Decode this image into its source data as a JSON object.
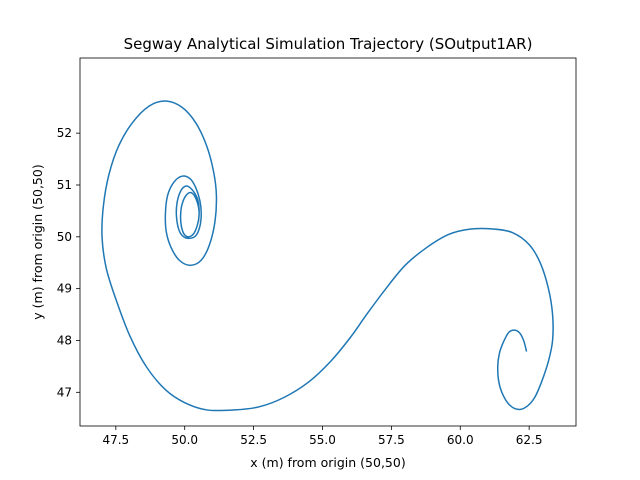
{
  "chart_data": {
    "type": "line",
    "title": "Segway Analytical Simulation Trajectory (SOutput1AR)",
    "xlabel": "x (m) from origin (50,50)",
    "ylabel": "y (m) from origin (50,50)",
    "xlim": [
      46.2,
      64.2
    ],
    "ylim": [
      46.35,
      53.45
    ],
    "xticks": [
      47.5,
      50.0,
      52.5,
      55.0,
      57.5,
      60.0,
      62.5
    ],
    "xtick_labels": [
      "47.5",
      "50.0",
      "52.5",
      "55.0",
      "57.5",
      "60.0",
      "62.5"
    ],
    "yticks": [
      47,
      48,
      49,
      50,
      51,
      52
    ],
    "ytick_labels": [
      "47",
      "48",
      "49",
      "50",
      "51",
      "52"
    ],
    "grid": false,
    "legend": "none",
    "series": [
      {
        "color": "#1f77b4",
        "points": [
          [
            62.4,
            47.8
          ],
          [
            62.3,
            48.0
          ],
          [
            62.15,
            48.15
          ],
          [
            61.95,
            48.2
          ],
          [
            61.75,
            48.15
          ],
          [
            61.55,
            47.95
          ],
          [
            61.42,
            47.75
          ],
          [
            61.36,
            47.5
          ],
          [
            61.4,
            47.2
          ],
          [
            61.55,
            46.95
          ],
          [
            61.8,
            46.75
          ],
          [
            62.1,
            46.67
          ],
          [
            62.4,
            46.72
          ],
          [
            62.7,
            46.9
          ],
          [
            62.95,
            47.2
          ],
          [
            63.2,
            47.6
          ],
          [
            63.35,
            48.0
          ],
          [
            63.35,
            48.5
          ],
          [
            63.2,
            49.0
          ],
          [
            62.9,
            49.5
          ],
          [
            62.5,
            49.85
          ],
          [
            61.9,
            50.08
          ],
          [
            61.2,
            50.15
          ],
          [
            60.4,
            50.15
          ],
          [
            59.6,
            50.05
          ],
          [
            58.8,
            49.8
          ],
          [
            58.0,
            49.45
          ],
          [
            57.3,
            49.0
          ],
          [
            56.6,
            48.5
          ],
          [
            56.0,
            48.05
          ],
          [
            55.3,
            47.6
          ],
          [
            54.5,
            47.2
          ],
          [
            53.6,
            46.9
          ],
          [
            52.7,
            46.72
          ],
          [
            51.8,
            46.66
          ],
          [
            50.8,
            46.66
          ],
          [
            50.0,
            46.8
          ],
          [
            49.3,
            47.05
          ],
          [
            48.6,
            47.5
          ],
          [
            48.0,
            48.1
          ],
          [
            47.5,
            48.8
          ],
          [
            47.15,
            49.4
          ],
          [
            47.0,
            50.0
          ],
          [
            47.05,
            50.6
          ],
          [
            47.25,
            51.2
          ],
          [
            47.6,
            51.75
          ],
          [
            48.1,
            52.2
          ],
          [
            48.7,
            52.52
          ],
          [
            49.3,
            52.62
          ],
          [
            49.9,
            52.5
          ],
          [
            50.4,
            52.2
          ],
          [
            50.8,
            51.75
          ],
          [
            51.05,
            51.25
          ],
          [
            51.15,
            50.8
          ],
          [
            51.1,
            50.3
          ],
          [
            50.9,
            49.85
          ],
          [
            50.6,
            49.55
          ],
          [
            50.2,
            49.45
          ],
          [
            49.8,
            49.55
          ],
          [
            49.5,
            49.8
          ],
          [
            49.33,
            50.1
          ],
          [
            49.3,
            50.45
          ],
          [
            49.38,
            50.8
          ],
          [
            49.6,
            51.05
          ],
          [
            49.9,
            51.17
          ],
          [
            50.2,
            51.12
          ],
          [
            50.4,
            50.95
          ],
          [
            50.55,
            50.7
          ],
          [
            50.6,
            50.45
          ],
          [
            50.55,
            50.2
          ],
          [
            50.4,
            50.02
          ],
          [
            50.15,
            49.97
          ],
          [
            49.92,
            50.02
          ],
          [
            49.78,
            50.15
          ],
          [
            49.7,
            50.4
          ],
          [
            49.72,
            50.65
          ],
          [
            49.85,
            50.88
          ],
          [
            50.05,
            50.98
          ],
          [
            50.25,
            50.92
          ],
          [
            50.45,
            50.75
          ],
          [
            50.52,
            50.55
          ],
          [
            50.5,
            50.32
          ],
          [
            50.35,
            50.08
          ],
          [
            50.15,
            50.0
          ],
          [
            49.98,
            50.05
          ],
          [
            49.88,
            50.2
          ],
          [
            49.85,
            50.4
          ],
          [
            49.9,
            50.62
          ],
          [
            50.05,
            50.8
          ],
          [
            50.25,
            50.85
          ],
          [
            50.42,
            50.72
          ],
          [
            50.52,
            50.5
          ],
          [
            50.5,
            50.3
          ]
        ]
      }
    ]
  }
}
